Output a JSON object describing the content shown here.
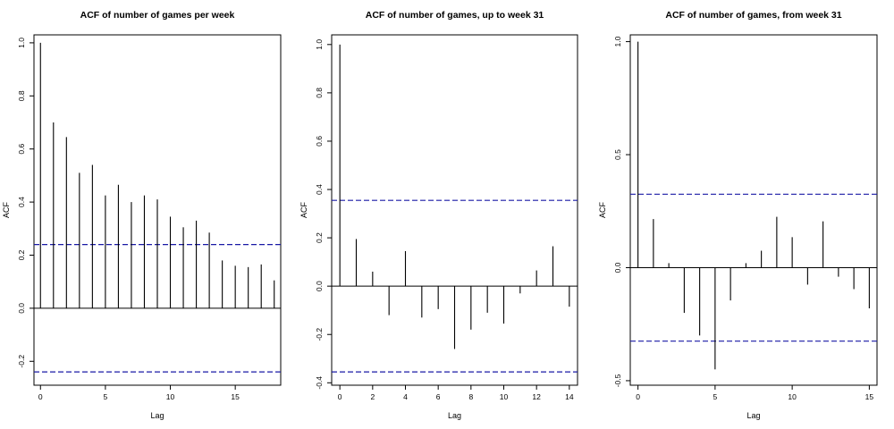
{
  "chart_data": [
    {
      "type": "bar",
      "title": "ACF of number of games per week",
      "xlabel": "Lag",
      "ylabel": "ACF",
      "xlim": [
        -0.5,
        18.5
      ],
      "ylim": [
        -0.29,
        1.03
      ],
      "xticks": [
        0,
        5,
        10,
        15
      ],
      "yticks": [
        -0.2,
        0.0,
        0.2,
        0.4,
        0.6,
        0.8,
        1.0
      ],
      "ytick_labels": [
        "-0.2",
        "0.0",
        "0.2",
        "0.4",
        "0.6",
        "0.8",
        "1.0"
      ],
      "lags": [
        0,
        1,
        2,
        3,
        4,
        5,
        6,
        7,
        8,
        9,
        10,
        11,
        12,
        13,
        14,
        15,
        16,
        17,
        18
      ],
      "values": [
        1.0,
        0.7,
        0.645,
        0.51,
        0.54,
        0.425,
        0.465,
        0.4,
        0.425,
        0.41,
        0.345,
        0.305,
        0.33,
        0.285,
        0.18,
        0.16,
        0.155,
        0.165,
        0.105
      ],
      "ci": 0.24
    },
    {
      "type": "bar",
      "title": "ACF of number of games, up to week 31",
      "xlabel": "Lag",
      "ylabel": "ACF",
      "xlim": [
        -0.5,
        14.5
      ],
      "ylim": [
        -0.41,
        1.04
      ],
      "xticks": [
        0,
        2,
        4,
        6,
        8,
        10,
        12,
        14
      ],
      "yticks": [
        -0.4,
        -0.2,
        0.0,
        0.2,
        0.4,
        0.6,
        0.8,
        1.0
      ],
      "ytick_labels": [
        "-0.4",
        "-0.2",
        "0.0",
        "0.2",
        "0.4",
        "0.6",
        "0.8",
        "1.0"
      ],
      "lags": [
        0,
        1,
        2,
        3,
        4,
        5,
        6,
        7,
        8,
        9,
        10,
        11,
        12,
        13,
        14
      ],
      "values": [
        1.0,
        0.195,
        0.06,
        -0.12,
        0.145,
        -0.13,
        -0.095,
        -0.26,
        -0.18,
        -0.11,
        -0.155,
        -0.03,
        0.065,
        0.165,
        -0.085
      ],
      "ci": 0.355
    },
    {
      "type": "bar",
      "title": "ACF of number of games, from week 31",
      "xlabel": "Lag",
      "ylabel": "ACF",
      "xlim": [
        -0.5,
        15.5
      ],
      "ylim": [
        -0.52,
        1.03
      ],
      "xticks": [
        0,
        5,
        10,
        15
      ],
      "yticks": [
        -0.5,
        0.0,
        0.5,
        1.0
      ],
      "ytick_labels": [
        "-0.5",
        "0.0",
        "0.5",
        "1.0"
      ],
      "lags": [
        0,
        1,
        2,
        3,
        4,
        5,
        6,
        7,
        8,
        9,
        10,
        11,
        12,
        13,
        14,
        15
      ],
      "values": [
        1.0,
        0.215,
        0.02,
        -0.2,
        -0.3,
        -0.45,
        -0.145,
        0.02,
        0.075,
        0.225,
        0.135,
        -0.075,
        0.205,
        -0.04,
        -0.095,
        -0.18
      ],
      "ci": 0.325
    }
  ]
}
